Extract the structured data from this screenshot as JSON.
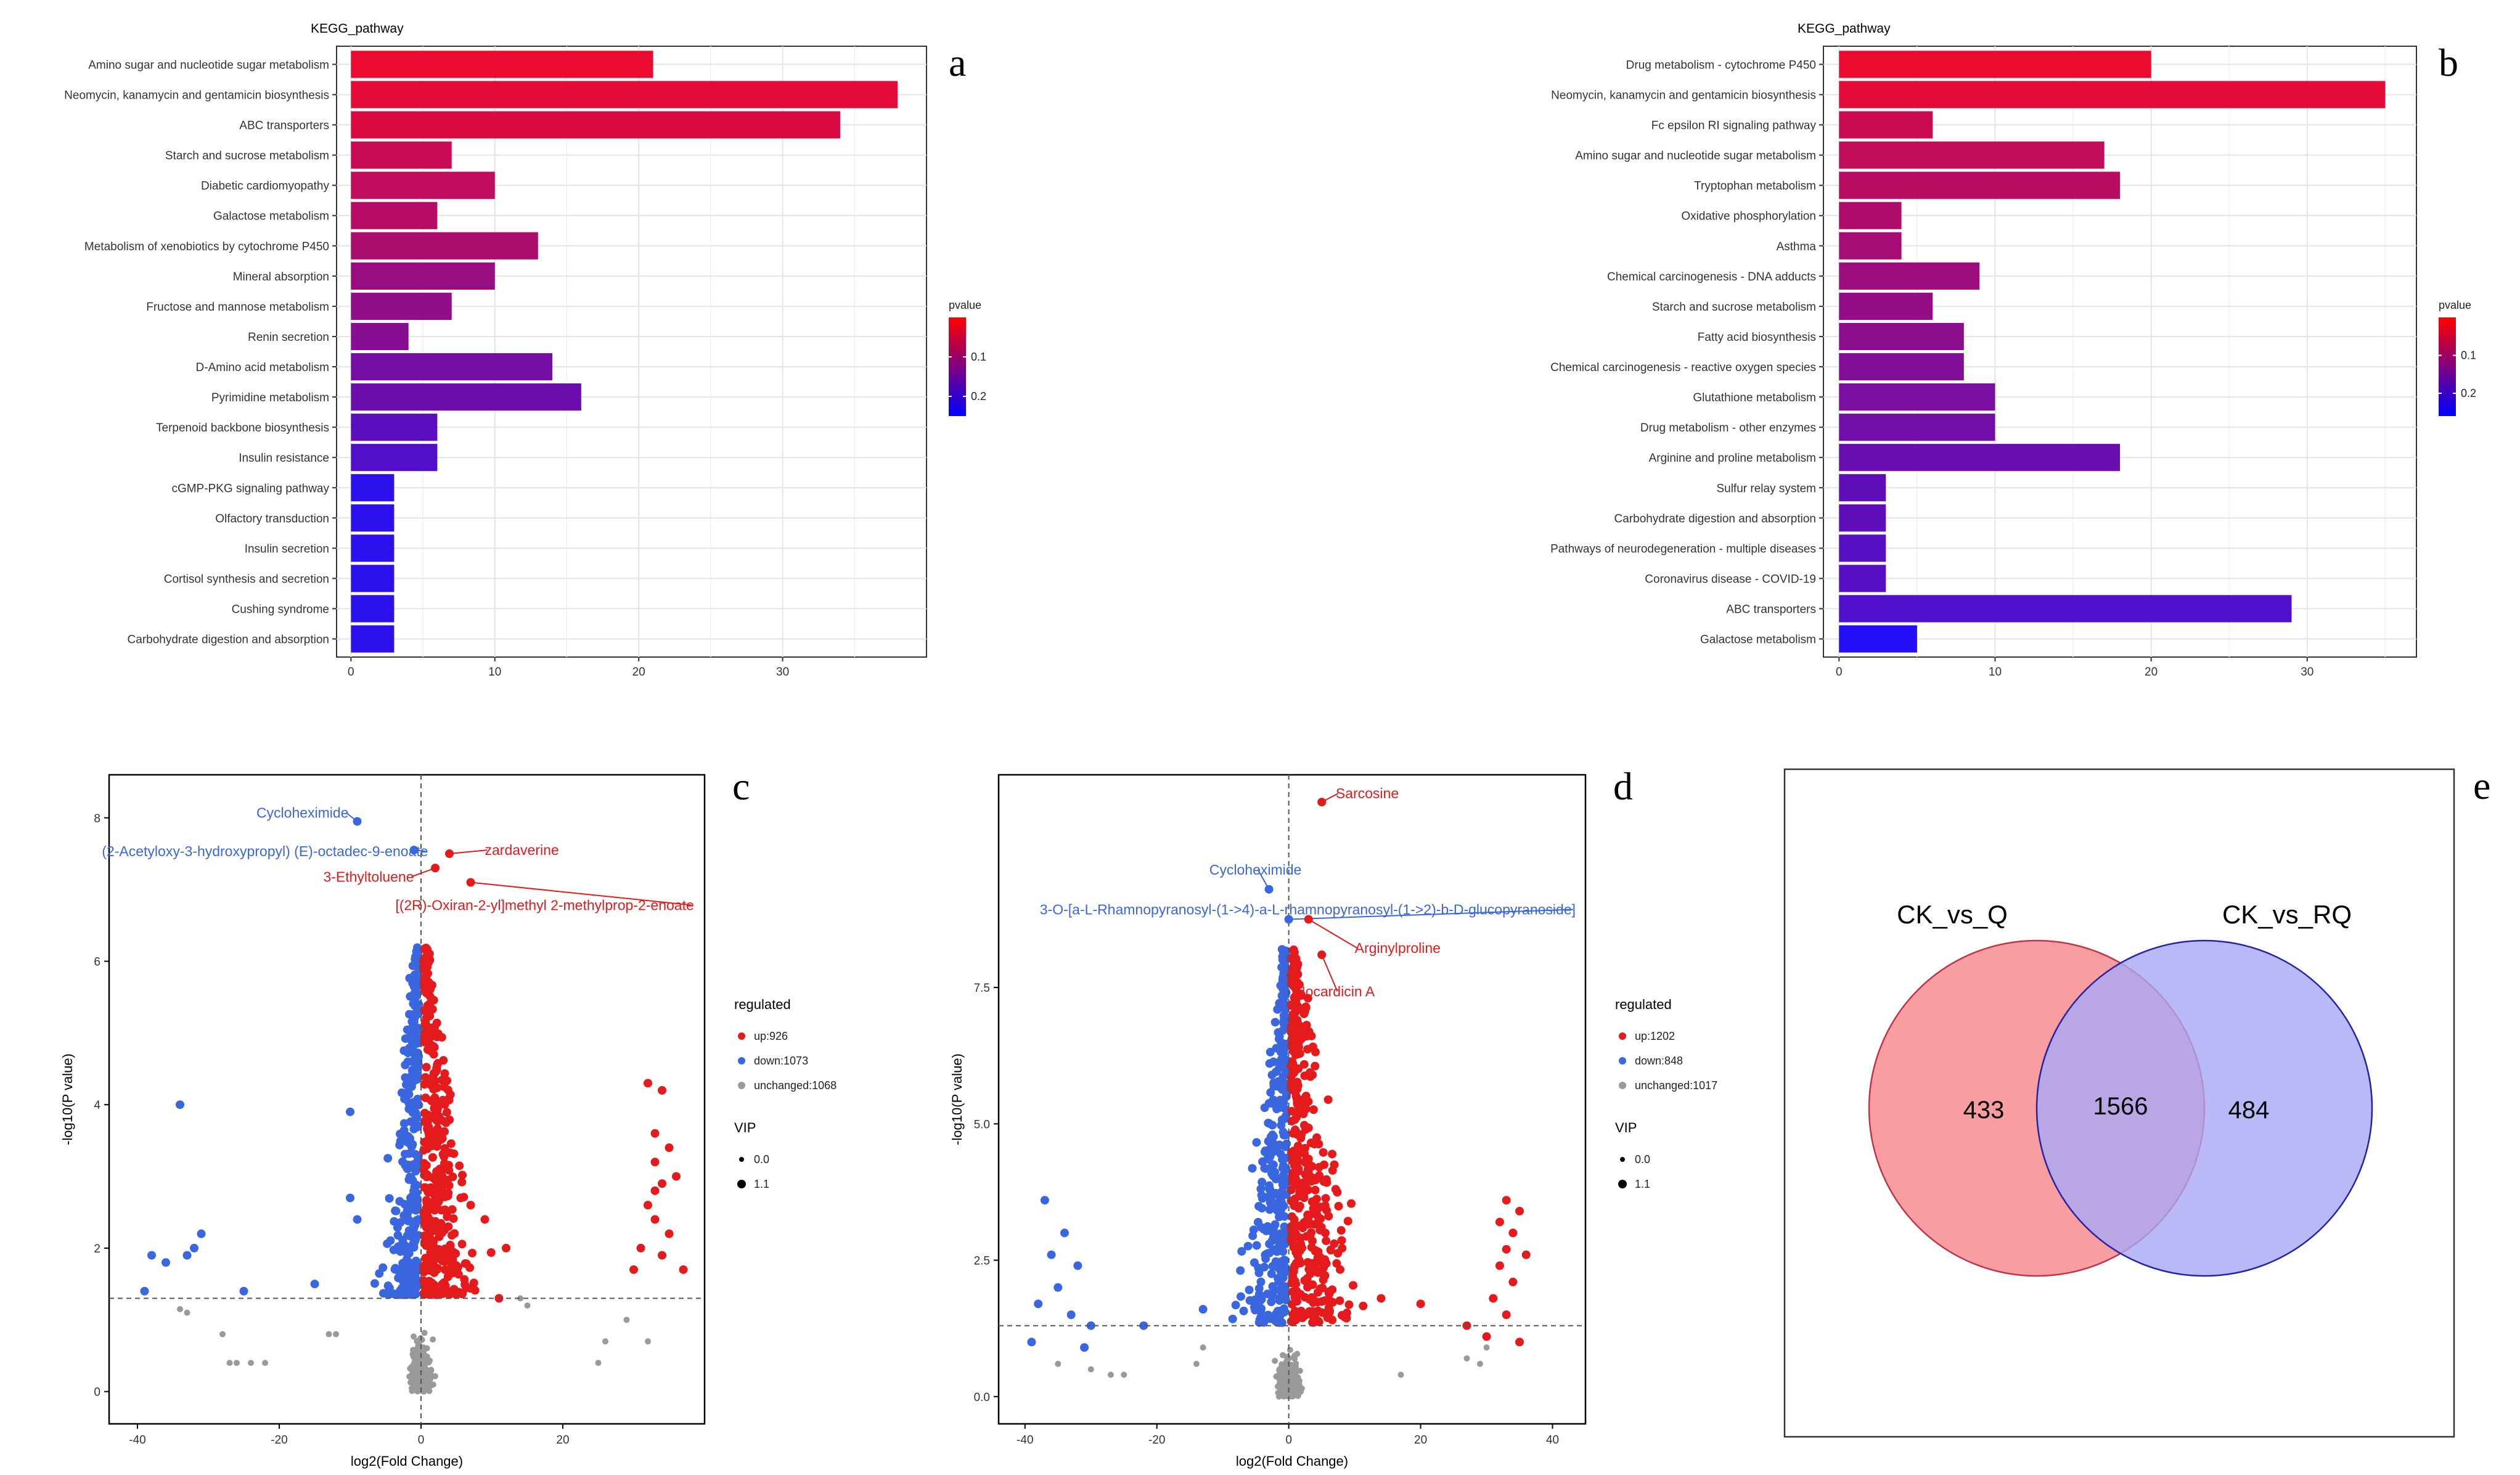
{
  "chart_data": [
    {
      "id": "a",
      "type": "bar",
      "orientation": "horizontal",
      "panel_label": "a",
      "title": "KEGG_pathway",
      "categories": [
        "Amino sugar and nucleotide sugar metabolism",
        "Neomycin, kanamycin and gentamicin biosynthesis",
        "ABC transporters",
        "Starch and sucrose metabolism",
        "Diabetic cardiomyopathy",
        "Galactose metabolism",
        "Metabolism of xenobiotics by cytochrome P450",
        "Mineral absorption",
        "Fructose and mannose metabolism",
        "Renin secretion",
        "D-Amino acid metabolism",
        "Pyrimidine metabolism",
        "Terpenoid backbone biosynthesis",
        "Insulin resistance",
        "cGMP-PKG signaling pathway",
        "Olfactory transduction",
        "Insulin secretion",
        "Cortisol synthesis and secretion",
        "Cushing syndrome",
        "Carbohydrate digestion and absorption"
      ],
      "values": [
        21,
        38,
        34,
        7,
        10,
        6,
        13,
        10,
        7,
        4,
        14,
        16,
        6,
        6,
        3,
        3,
        3,
        3,
        3,
        3
      ],
      "pvalue": [
        0.02,
        0.03,
        0.04,
        0.06,
        0.07,
        0.08,
        0.09,
        0.11,
        0.12,
        0.13,
        0.15,
        0.16,
        0.18,
        0.19,
        0.23,
        0.23,
        0.23,
        0.23,
        0.23,
        0.23
      ],
      "xticks": [
        0,
        10,
        20,
        30
      ],
      "xlim": [
        -1,
        40
      ],
      "legend": {
        "title": "pvalue",
        "ticks": [
          0.1,
          0.2
        ],
        "range": [
          0.0,
          0.25
        ],
        "colors": [
          "#ff0000",
          "#0000ff"
        ]
      }
    },
    {
      "id": "b",
      "type": "bar",
      "orientation": "horizontal",
      "panel_label": "b",
      "title": "KEGG_pathway",
      "categories": [
        "Drug metabolism - cytochrome P450",
        "Neomycin, kanamycin and gentamicin biosynthesis",
        "Fc epsilon RI signaling pathway",
        "Amino sugar and nucleotide sugar metabolism",
        "Tryptophan metabolism",
        "Oxidative phosphorylation",
        "Asthma",
        "Chemical carcinogenesis - DNA adducts",
        "Starch and sucrose metabolism",
        "Fatty acid biosynthesis",
        "Chemical carcinogenesis - reactive oxygen species",
        "Glutathione metabolism",
        "Drug metabolism - other enzymes",
        "Arginine and proline metabolism",
        "Sulfur relay system",
        "Carbohydrate digestion and absorption",
        "Pathways of neurodegeneration - multiple diseases",
        "Coronavirus disease - COVID-19",
        "ABC transporters",
        "Galactose metabolism"
      ],
      "values": [
        20,
        35,
        6,
        17,
        18,
        4,
        4,
        9,
        6,
        8,
        8,
        10,
        10,
        18,
        3,
        3,
        3,
        3,
        29,
        5
      ],
      "pvalue": [
        0.02,
        0.03,
        0.06,
        0.07,
        0.08,
        0.09,
        0.1,
        0.11,
        0.12,
        0.13,
        0.14,
        0.15,
        0.16,
        0.17,
        0.18,
        0.18,
        0.19,
        0.19,
        0.2,
        0.25
      ],
      "xticks": [
        0,
        10,
        20,
        30
      ],
      "xlim": [
        -1,
        37
      ],
      "legend": {
        "title": "pvalue",
        "ticks": [
          0.1,
          0.2
        ],
        "range": [
          0.0,
          0.26
        ],
        "colors": [
          "#ff0000",
          "#0000ff"
        ]
      }
    },
    {
      "id": "c",
      "type": "scatter",
      "subtype": "volcano",
      "panel_label": "c",
      "xlabel": "log2(Fold Change)",
      "ylabel": "-log10(P value)",
      "xlim": [
        -44,
        40
      ],
      "ylim": [
        -0.45,
        8.6
      ],
      "xticks": [
        -40,
        -20,
        0,
        20
      ],
      "yticks": [
        0,
        2,
        4,
        6,
        8
      ],
      "p_threshold_y": 1.3,
      "fc_threshold_x": 0,
      "legend": {
        "title": "regulated",
        "items": [
          {
            "label": "up:926",
            "color": "#e41a1c"
          },
          {
            "label": "down:1073",
            "color": "#3a66e0"
          },
          {
            "label": "unchanged:1068",
            "color": "#9a9a9a"
          }
        ],
        "vip_title": "VIP",
        "vip_items": [
          "0.0",
          "1.1"
        ]
      },
      "points": {
        "up": [
          [
            32,
            4.3
          ],
          [
            34,
            4.2
          ],
          [
            33,
            3.6
          ],
          [
            35,
            3.4
          ],
          [
            33,
            3.2
          ],
          [
            34,
            2.9
          ],
          [
            32,
            2.6
          ],
          [
            33,
            2.4
          ],
          [
            35,
            2.2
          ],
          [
            31,
            2.0
          ],
          [
            34,
            1.9
          ],
          [
            30,
            1.7
          ],
          [
            37,
            1.7
          ],
          [
            33,
            2.8
          ],
          [
            36,
            3.0
          ],
          [
            11,
            1.3
          ],
          [
            12,
            2.0
          ],
          [
            7,
            2.6
          ],
          [
            9,
            2.4
          ]
        ],
        "down": [
          [
            -34,
            4.0
          ],
          [
            -31,
            2.2
          ],
          [
            -32,
            2.0
          ],
          [
            -33,
            1.9
          ],
          [
            -38,
            1.9
          ],
          [
            -36,
            1.8
          ],
          [
            -39,
            1.4
          ],
          [
            -25,
            1.4
          ],
          [
            -15,
            1.5
          ],
          [
            -10,
            3.9
          ],
          [
            -9,
            2.4
          ],
          [
            -10,
            2.7
          ]
        ],
        "unchanged": [
          [
            -34,
            1.15
          ],
          [
            -33,
            1.1
          ],
          [
            -28,
            0.8
          ],
          [
            -27,
            0.4
          ],
          [
            -26,
            0.4
          ],
          [
            -24,
            0.4
          ],
          [
            -22,
            0.4
          ],
          [
            -13,
            0.8
          ],
          [
            -12,
            0.8
          ],
          [
            25,
            0.4
          ],
          [
            26,
            0.7
          ],
          [
            29,
            1.0
          ],
          [
            32,
            0.7
          ],
          [
            14,
            1.3
          ],
          [
            15,
            1.2
          ]
        ]
      },
      "annotations": [
        {
          "text": "Cycloheximide",
          "x": -9,
          "y": 7.95,
          "color": "#3a66e0"
        },
        {
          "text": "(2-Acetyloxy-3-hydroxypropyl) (E)-octadec-9-enoate",
          "x": -1,
          "y": 7.55,
          "color": "#3a66e0"
        },
        {
          "text": "zardaverine",
          "x": 4,
          "y": 7.5,
          "color": "#e41a1c"
        },
        {
          "text": "3-Ethyltoluene",
          "x": 2,
          "y": 7.3,
          "color": "#e41a1c"
        },
        {
          "text": "[(2R)-Oxiran-2-yl]methyl 2-methylprop-2-enoate",
          "x": 7,
          "y": 7.1,
          "color": "#e41a1c"
        }
      ]
    },
    {
      "id": "d",
      "type": "scatter",
      "subtype": "volcano",
      "panel_label": "d",
      "xlabel": "log2(Fold Change)",
      "ylabel": "-log10(P value)",
      "xlim": [
        -44,
        45
      ],
      "ylim": [
        -0.5,
        11.4
      ],
      "xticks": [
        -40,
        -20,
        0,
        20,
        40
      ],
      "yticks": [
        0.0,
        2.5,
        5.0,
        7.5
      ],
      "p_threshold_y": 1.3,
      "fc_threshold_x": 0,
      "legend": {
        "title": "regulated",
        "items": [
          {
            "label": "up:1202",
            "color": "#e41a1c"
          },
          {
            "label": "down:848",
            "color": "#3a66e0"
          },
          {
            "label": "unchanged:1017",
            "color": "#9a9a9a"
          }
        ],
        "vip_title": "VIP",
        "vip_items": [
          "0.0",
          "1.1"
        ]
      },
      "points": {
        "up": [
          [
            33,
            3.6
          ],
          [
            35,
            3.4
          ],
          [
            32,
            3.2
          ],
          [
            34,
            3.0
          ],
          [
            33,
            2.7
          ],
          [
            36,
            2.6
          ],
          [
            32,
            2.4
          ],
          [
            34,
            2.1
          ],
          [
            31,
            1.8
          ],
          [
            33,
            1.5
          ],
          [
            35,
            1.0
          ],
          [
            27,
            1.3
          ],
          [
            30,
            1.1
          ],
          [
            20,
            1.7
          ],
          [
            14,
            1.8
          ]
        ],
        "down": [
          [
            -37,
            3.6
          ],
          [
            -34,
            3.0
          ],
          [
            -36,
            2.6
          ],
          [
            -32,
            2.4
          ],
          [
            -35,
            2.0
          ],
          [
            -38,
            1.7
          ],
          [
            -33,
            1.5
          ],
          [
            -39,
            1.0
          ],
          [
            -30,
            1.3
          ],
          [
            -31,
            0.9
          ],
          [
            -22,
            1.3
          ],
          [
            -13,
            1.6
          ]
        ],
        "unchanged": [
          [
            -35,
            0.6
          ],
          [
            -30,
            0.5
          ],
          [
            -27,
            0.4
          ],
          [
            -25,
            0.4
          ],
          [
            -14,
            0.6
          ],
          [
            -13,
            0.9
          ],
          [
            17,
            0.4
          ],
          [
            27,
            0.7
          ],
          [
            29,
            0.6
          ],
          [
            30,
            0.9
          ]
        ]
      },
      "annotations": [
        {
          "text": "Sarcosine",
          "x": 5,
          "y": 10.9,
          "color": "#e41a1c"
        },
        {
          "text": "Cycloheximide",
          "x": -3,
          "y": 9.3,
          "color": "#3a66e0"
        },
        {
          "text": "3-O-[a-L-Rhamnopyranosyl-(1->4)-a-L-rhamnopyranosyl-(1->2)-b-D-glucopyranoside]",
          "x": 0,
          "y": 8.75,
          "color": "#3a66e0"
        },
        {
          "text": "Arginylproline",
          "x": 3,
          "y": 8.75,
          "color": "#e41a1c"
        },
        {
          "text": "Nocardicin A",
          "x": 5,
          "y": 8.1,
          "color": "#e41a1c"
        }
      ]
    },
    {
      "id": "e",
      "type": "venn",
      "panel_label": "e",
      "sets": [
        {
          "name": "CK_vs_Q",
          "color": "#f89ea0",
          "only": "433"
        },
        {
          "name": "CK_vs_RQ",
          "color": "#a8a8f6",
          "only": "484"
        }
      ],
      "intersection": "1566"
    }
  ]
}
